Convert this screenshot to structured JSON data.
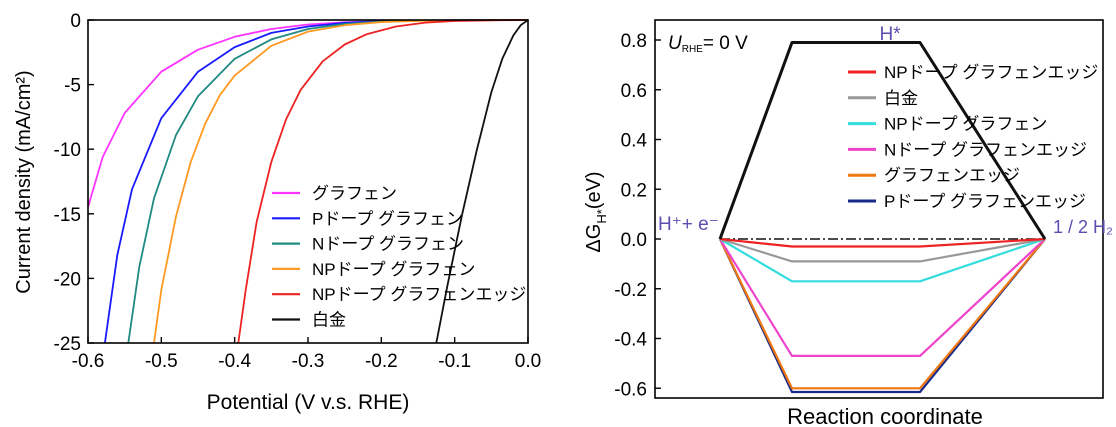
{
  "chart_data": [
    {
      "type": "line",
      "xlabel": "Potential (V v.s. RHE)",
      "ylabel": "Current density (mA/cm²)",
      "xlim": [
        -0.6,
        0.0
      ],
      "ylim": [
        -25,
        0
      ],
      "xticks": [
        "-0.6",
        "-0.5",
        "-0.4",
        "-0.3",
        "-0.2",
        "-0.1",
        "0.0"
      ],
      "yticks": [
        "0",
        "-5",
        "-10",
        "-15",
        "-20",
        "-25"
      ],
      "legend_position": "bottom-right",
      "series": [
        {
          "name": "グラフェン",
          "color": "#ff33ff",
          "x": [
            -0.6,
            -0.58,
            -0.55,
            -0.5,
            -0.45,
            -0.4,
            -0.35,
            -0.3,
            -0.25,
            -0.2,
            -0.15,
            -0.1,
            -0.05,
            0.0
          ],
          "y": [
            -14.5,
            -10.6,
            -7.2,
            -4.0,
            -2.3,
            -1.3,
            -0.7,
            -0.35,
            -0.18,
            -0.09,
            -0.04,
            -0.02,
            -0.01,
            0.0
          ]
        },
        {
          "name": "Pドープ グラフェン",
          "color": "#1a1aff",
          "x": [
            -0.577,
            -0.56,
            -0.54,
            -0.5,
            -0.45,
            -0.4,
            -0.35,
            -0.3,
            -0.25,
            -0.2,
            -0.15,
            -0.1,
            -0.05,
            0.0
          ],
          "y": [
            -25.0,
            -18.2,
            -13.1,
            -7.6,
            -4.0,
            -2.1,
            -1.0,
            -0.5,
            -0.22,
            -0.1,
            -0.05,
            -0.02,
            -0.01,
            0.0
          ]
        },
        {
          "name": "Nドープ グラフェン",
          "color": "#1f8a82",
          "x": [
            -0.545,
            -0.53,
            -0.51,
            -0.48,
            -0.45,
            -0.4,
            -0.35,
            -0.3,
            -0.25,
            -0.2,
            -0.15,
            -0.1,
            -0.05,
            0.0
          ],
          "y": [
            -25.0,
            -19.1,
            -13.8,
            -8.9,
            -5.9,
            -3.0,
            -1.5,
            -0.7,
            -0.3,
            -0.13,
            -0.05,
            -0.02,
            -0.01,
            0.0
          ]
        },
        {
          "name": "NPドープ グラフェン",
          "color": "#ff9922",
          "x": [
            -0.51,
            -0.5,
            -0.48,
            -0.46,
            -0.44,
            -0.42,
            -0.4,
            -0.35,
            -0.3,
            -0.25,
            -0.2,
            -0.15,
            -0.1,
            -0.05,
            0.0
          ],
          "y": [
            -25.0,
            -20.9,
            -15.2,
            -11.0,
            -8.0,
            -5.8,
            -4.3,
            -2.0,
            -0.9,
            -0.4,
            -0.16,
            -0.06,
            -0.02,
            -0.01,
            0.0
          ]
        },
        {
          "name": "NPドープ グラフェンエッジ",
          "color": "#ee2222",
          "x": [
            -0.395,
            -0.385,
            -0.37,
            -0.35,
            -0.33,
            -0.31,
            -0.28,
            -0.25,
            -0.22,
            -0.18,
            -0.14,
            -0.1,
            -0.05,
            0.0
          ],
          "y": [
            -25.0,
            -20.9,
            -15.6,
            -11.0,
            -7.7,
            -5.4,
            -3.2,
            -1.9,
            -1.1,
            -0.5,
            -0.2,
            -0.08,
            -0.02,
            0.0
          ]
        },
        {
          "name": "白金",
          "color": "#111111",
          "x": [
            -0.125,
            -0.11,
            -0.09,
            -0.07,
            -0.05,
            -0.035,
            -0.02,
            -0.01,
            0.0
          ],
          "y": [
            -25.0,
            -20.6,
            -15.1,
            -10.1,
            -5.6,
            -3.0,
            -1.2,
            -0.4,
            0.0
          ]
        }
      ]
    },
    {
      "type": "line",
      "xlabel": "Reaction coordinate",
      "ylabel": "ΔG",
      "ylabel_sub": "H*",
      "ylabel_unit": "(eV)",
      "ylim": [
        -0.62,
        0.85
      ],
      "yticks": [
        "0.8",
        "0.6",
        "0.4",
        "0.2",
        "0.0",
        "-0.2",
        "-0.4",
        "-0.6"
      ],
      "condition": {
        "symbol": "U",
        "sub": "RHE",
        "text": "= 0 V"
      },
      "state_labels": {
        "left": "H⁺+ e⁻",
        "middle": "H*",
        "right": "1 / 2 H₂"
      },
      "x": [
        0,
        1,
        2,
        3
      ],
      "legend_position": "top-right",
      "series": [
        {
          "name": "NPドープ グラフェンエッジ",
          "color": "#ee2222",
          "y": [
            0.0,
            -0.03,
            -0.03,
            0.0
          ]
        },
        {
          "name": "白金",
          "color": "#999999",
          "y": [
            0.0,
            -0.09,
            -0.09,
            0.0
          ]
        },
        {
          "name": "NPドープ グラフェン",
          "color": "#33dddd",
          "y": [
            0.0,
            -0.17,
            -0.17,
            0.0
          ]
        },
        {
          "name": "Nドープ グラフェンエッジ",
          "color": "#ee44cc",
          "y": [
            0.0,
            -0.47,
            -0.47,
            0.0
          ]
        },
        {
          "name": "グラフェンエッジ",
          "color": "#ee7711",
          "y": [
            0.0,
            -0.6,
            -0.6,
            0.0
          ]
        },
        {
          "name": "Pドープ グラフェンエッジ",
          "color": "#1a2a8a",
          "y": [
            0.0,
            -0.615,
            -0.615,
            0.0
          ]
        }
      ],
      "hydrogen_path": {
        "color": "#111111",
        "y": [
          0.0,
          0.79,
          0.79,
          0.0
        ]
      }
    }
  ]
}
